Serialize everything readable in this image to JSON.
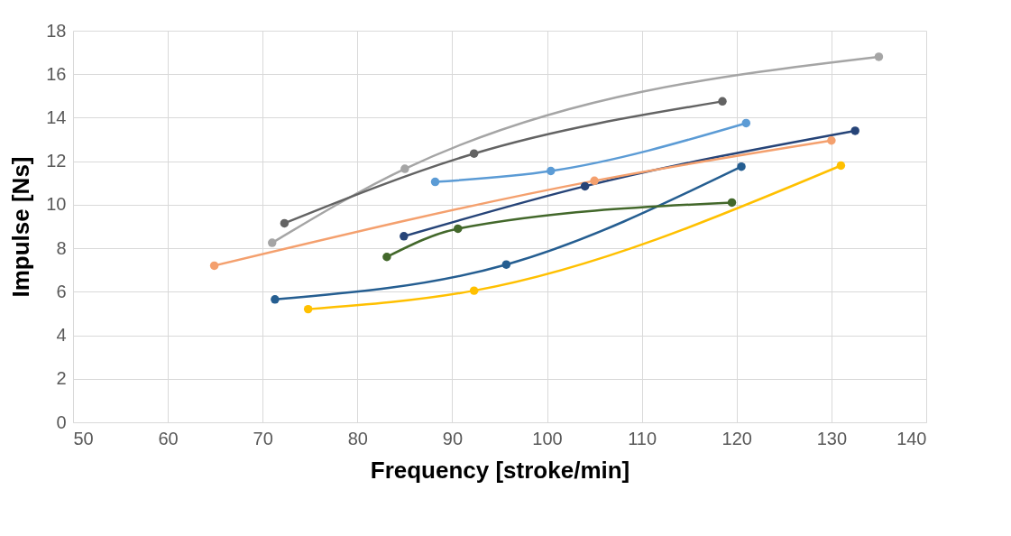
{
  "chart_data": {
    "type": "line",
    "xlabel": "Frequency [stroke/min]",
    "ylabel": "Impulse [Ns]",
    "xlim": [
      50,
      140
    ],
    "xticks": [
      50,
      60,
      70,
      80,
      90,
      100,
      110,
      120,
      130,
      140
    ],
    "ylim": [
      0,
      18
    ],
    "yticks": [
      0,
      2,
      4,
      6,
      8,
      10,
      12,
      14,
      16,
      18
    ],
    "grid": true,
    "marker": "circle",
    "line_style": "solid",
    "series": [
      {
        "color": "#a5a5a5",
        "x": [
          71,
          85,
          135
        ],
        "values": [
          8.25,
          11.65,
          16.8
        ]
      },
      {
        "color": "#636363",
        "x": [
          72.3,
          92.3,
          118.5
        ],
        "values": [
          9.15,
          12.35,
          14.75
        ]
      },
      {
        "color": "#5b9bd5",
        "x": [
          88.2,
          100.4,
          121
        ],
        "values": [
          11.05,
          11.55,
          13.75
        ]
      },
      {
        "color": "#264478",
        "x": [
          84.9,
          104,
          132.5
        ],
        "values": [
          8.55,
          10.85,
          13.4
        ]
      },
      {
        "color": "#f4a06e",
        "x": [
          64.9,
          105,
          130
        ],
        "values": [
          7.2,
          11.1,
          12.95
        ]
      },
      {
        "color": "#255e91",
        "x": [
          71.3,
          95.7,
          120.5
        ],
        "values": [
          5.65,
          7.25,
          11.75
        ]
      },
      {
        "color": "#43682b",
        "x": [
          83.1,
          90.6,
          119.5
        ],
        "values": [
          7.6,
          8.9,
          10.1
        ]
      },
      {
        "color": "#ffc000",
        "x": [
          74.8,
          92.3,
          131
        ],
        "values": [
          5.2,
          6.05,
          11.8
        ]
      }
    ]
  }
}
